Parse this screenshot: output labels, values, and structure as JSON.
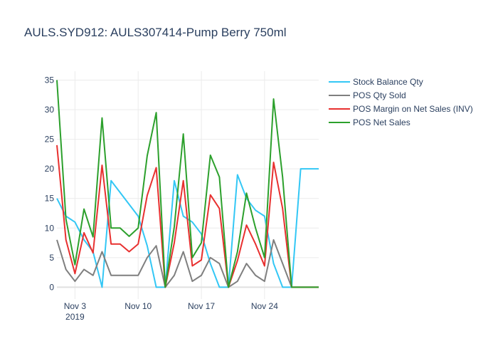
{
  "chart_data": {
    "type": "line",
    "title": "AULS.SYD912:  AULS307414-Pump Berry 750ml",
    "xlabel": "",
    "ylabel": "",
    "x_start": "2019-11-01",
    "x_end": "2019-11-30",
    "x_ticks": [
      {
        "date": "2019-11-03",
        "label": "Nov 3",
        "sublabel": "2019"
      },
      {
        "date": "2019-11-10",
        "label": "Nov 10",
        "sublabel": ""
      },
      {
        "date": "2019-11-17",
        "label": "Nov 17",
        "sublabel": ""
      },
      {
        "date": "2019-11-24",
        "label": "Nov 24",
        "sublabel": ""
      }
    ],
    "ylim": [
      -2,
      36.5
    ],
    "y_ticks": [
      0,
      5,
      10,
      15,
      20,
      25,
      30,
      35
    ],
    "grid": true,
    "legend_position": "top-right",
    "x": [
      "2019-11-01",
      "2019-11-02",
      "2019-11-03",
      "2019-11-04",
      "2019-11-05",
      "2019-11-06",
      "2019-11-07",
      "2019-11-08",
      "2019-11-09",
      "2019-11-10",
      "2019-11-11",
      "2019-11-12",
      "2019-11-13",
      "2019-11-14",
      "2019-11-15",
      "2019-11-16",
      "2019-11-17",
      "2019-11-18",
      "2019-11-19",
      "2019-11-20",
      "2019-11-21",
      "2019-11-22",
      "2019-11-23",
      "2019-11-24",
      "2019-11-25",
      "2019-11-26",
      "2019-11-27",
      "2019-11-28",
      "2019-11-29",
      "2019-11-30"
    ],
    "series": [
      {
        "name": "Stock Balance Qty",
        "color": "#33c7f5",
        "values": [
          15,
          12,
          11,
          8,
          6,
          0,
          18,
          16,
          14,
          12,
          7,
          0,
          0,
          18,
          12,
          11,
          9,
          4,
          0,
          0,
          19,
          15,
          13,
          12,
          4,
          0,
          0,
          20,
          20,
          20
        ]
      },
      {
        "name": "POS Qty Sold",
        "color": "#7f7f7f",
        "values": [
          8,
          3,
          1,
          3,
          2,
          6,
          2,
          2,
          2,
          2,
          5,
          7,
          0,
          2,
          6,
          1,
          2,
          5,
          4,
          0,
          1,
          4,
          2,
          1,
          8,
          4,
          0,
          0,
          0,
          0
        ]
      },
      {
        "name": "POS Margin on Net Sales (INV)",
        "color": "#e8302f",
        "values": [
          24,
          8,
          2.3,
          9.2,
          5.8,
          20.6,
          7.3,
          7.3,
          6,
          7.3,
          15.5,
          20.2,
          0,
          7.5,
          18,
          3.6,
          4.6,
          15.6,
          13.3,
          0,
          4.5,
          10.5,
          7.3,
          3.6,
          21.1,
          13.3,
          0,
          0,
          0,
          0
        ]
      },
      {
        "name": "POS Net Sales",
        "color": "#2ca02c",
        "values": [
          35,
          11.5,
          3.8,
          13.2,
          8.5,
          28.6,
          10,
          10,
          8.6,
          10,
          22.2,
          29.5,
          0,
          10.2,
          25.9,
          5,
          7.5,
          22.3,
          18.6,
          0,
          6,
          15.9,
          10,
          5,
          31.8,
          18.6,
          0,
          0,
          0,
          0
        ]
      }
    ]
  }
}
